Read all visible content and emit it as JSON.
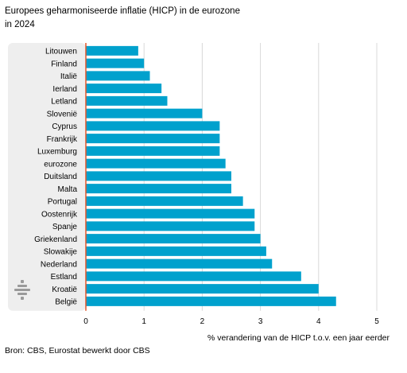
{
  "title_line1": "Europees geharmoniseerde inflatie (HICP) in de eurozone",
  "title_line2": "in 2024",
  "source": "Bron: CBS, Eurostat bewerkt door CBS",
  "colors": {
    "bar": "#00a1cd",
    "label_panel": "#eeeeee",
    "grid": "#d9d9d9",
    "axis": "#e0572b",
    "logo": "#9a9a9a"
  },
  "logo_icon": "cbs-logo-icon",
  "chart_data": {
    "type": "bar",
    "orientation": "horizontal",
    "title": "Europees geharmoniseerde inflatie (HICP) in de eurozone in 2024",
    "xlabel": "% verandering van de HICP t.o.v. een jaar eerder",
    "ylabel": "",
    "xlim": [
      0,
      5
    ],
    "xticks": [
      0,
      1,
      2,
      3,
      4,
      5
    ],
    "grid": "vertical",
    "categories": [
      "Litouwen",
      "Finland",
      "Italië",
      "Ierland",
      "Letland",
      "Slovenië",
      "Cyprus",
      "Frankrijk",
      "Luxemburg",
      "eurozone",
      "Duitsland",
      "Malta",
      "Portugal",
      "Oostenrijk",
      "Spanje",
      "Griekenland",
      "Slowakije",
      "Nederland",
      "Estland",
      "Kroatië",
      "België"
    ],
    "values": [
      0.9,
      1.0,
      1.1,
      1.3,
      1.4,
      2.0,
      2.3,
      2.3,
      2.3,
      2.4,
      2.5,
      2.5,
      2.7,
      2.9,
      2.9,
      3.0,
      3.1,
      3.2,
      3.7,
      4.0,
      4.3
    ]
  }
}
